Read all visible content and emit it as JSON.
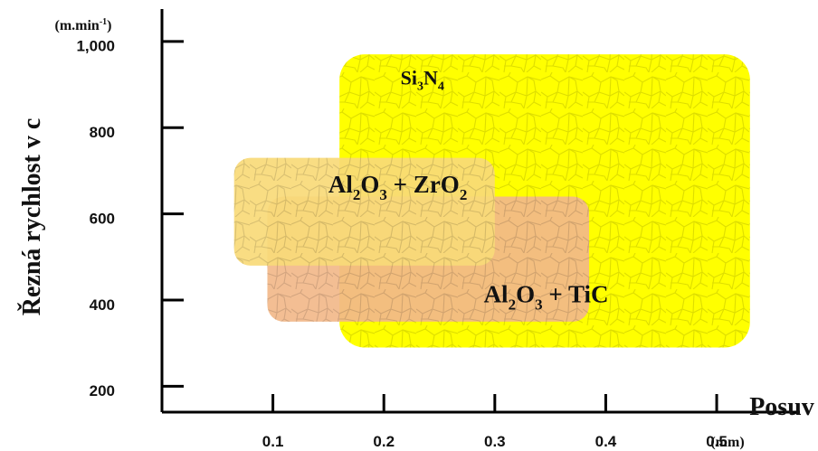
{
  "chart_data": {
    "type": "area",
    "title": "",
    "xlabel": "Posuv",
    "x_unit": "(mm)",
    "ylabel": "Řezná rychlost  v c",
    "y_unit": "(m.min",
    "y_unit_sup": "-1",
    "y_unit_close": ")",
    "xlim": [
      0,
      0.575
    ],
    "ylim": [
      150,
      1060
    ],
    "x_ticks": [
      0.1,
      0.2,
      0.3,
      0.4,
      0.5
    ],
    "x_tick_labels": [
      "0.1",
      "0.2",
      "0.3",
      "0.4",
      "0.5"
    ],
    "y_ticks": [
      200,
      400,
      600,
      800,
      1000
    ],
    "y_tick_marks": [
      210,
      410,
      610,
      810,
      1010
    ],
    "y_tick_labels": [
      "200",
      "400",
      "600",
      "800",
      "1,000"
    ],
    "grid": false,
    "regions": [
      {
        "formula": [
          {
            "t": "Si"
          },
          {
            "t": "3",
            "sub": true
          },
          {
            "t": "N"
          },
          {
            "t": "4",
            "sub": true
          }
        ],
        "x": [
          0.16,
          0.53
        ],
        "y": [
          300,
          980
        ],
        "color": "#ffff00",
        "label_pos": [
          0.215,
          910
        ]
      },
      {
        "formula": [
          {
            "t": "Al"
          },
          {
            "t": "2",
            "sub": true
          },
          {
            "t": "O"
          },
          {
            "t": "3",
            "sub": true
          },
          {
            "t": " + TiC"
          }
        ],
        "x": [
          0.095,
          0.385
        ],
        "y": [
          360,
          650
        ],
        "color": "#f2b98a",
        "label_pos": [
          0.29,
          405
        ]
      },
      {
        "formula": [
          {
            "t": "Al"
          },
          {
            "t": "2",
            "sub": true
          },
          {
            "t": "O"
          },
          {
            "t": "3",
            "sub": true
          },
          {
            "t": " + ZrO"
          },
          {
            "t": "2",
            "sub": true
          }
        ],
        "x": [
          0.065,
          0.3
        ],
        "y": [
          490,
          740
        ],
        "color": "#f8da78",
        "label_pos": [
          0.15,
          660
        ]
      }
    ]
  }
}
